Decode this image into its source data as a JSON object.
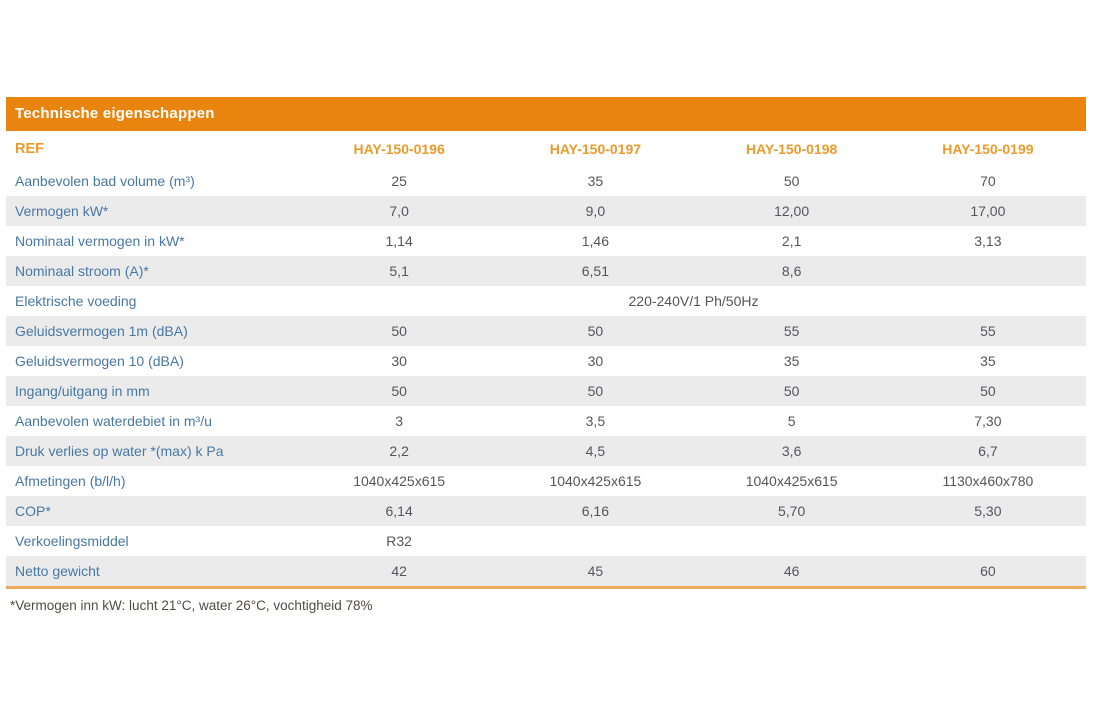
{
  "table": {
    "title": "Technische eigenschappen",
    "ref_label": "REF",
    "columns": [
      "HAY-150-0196",
      "HAY-150-0197",
      "HAY-150-0198",
      "HAY-150-0199"
    ],
    "rows": [
      {
        "label": "Aanbevolen bad volume (m³)",
        "values": [
          "25",
          "35",
          "50",
          "70"
        ]
      },
      {
        "label": "Vermogen kW*",
        "values": [
          "7,0",
          "9,0",
          "12,00",
          "17,00"
        ]
      },
      {
        "label": "Nominaal vermogen in kW*",
        "values": [
          "1,14",
          "1,46",
          "2,1",
          "3,13"
        ]
      },
      {
        "label": "Nominaal stroom (A)*",
        "values": [
          "5,1",
          "6,51",
          "8,6",
          ""
        ]
      },
      {
        "label": "Elektrische voeding",
        "span_value": "220-240V/1 Ph/50Hz"
      },
      {
        "label": "Geluidsvermogen 1m (dBA)",
        "values": [
          "50",
          "50",
          "55",
          "55"
        ]
      },
      {
        "label": "Geluidsvermogen 10 (dBA)",
        "values": [
          "30",
          "30",
          "35",
          "35"
        ]
      },
      {
        "label": "Ingang/uitgang in mm",
        "values": [
          "50",
          "50",
          "50",
          "50"
        ]
      },
      {
        "label": "Aanbevolen waterdebiet in m³/u",
        "values": [
          "3",
          "3,5",
          "5",
          "7,30"
        ]
      },
      {
        "label": "Druk verlies op water *(max) k Pa",
        "values": [
          "2,2",
          "4,5",
          "3,6",
          "6,7"
        ]
      },
      {
        "label": "Afmetingen (b/l/h)",
        "values": [
          "1040x425x615",
          "1040x425x615",
          "1040x425x615",
          "1130x460x780"
        ]
      },
      {
        "label": "COP*",
        "values": [
          "6,14",
          "6,16",
          "5,70",
          "5,30"
        ]
      },
      {
        "label": "Verkoelingsmiddel",
        "values": [
          "R32",
          "",
          "",
          ""
        ]
      },
      {
        "label": "Netto gewicht",
        "values": [
          "42",
          "45",
          "46",
          "60"
        ]
      }
    ],
    "footnote": "*Vermogen inn kW: lucht 21°C, water 26°C, vochtigheid 78%"
  },
  "colors": {
    "header_bg": "#E9850E",
    "header_text": "#FFFFFF",
    "col_header_text": "#EC9A2B",
    "label_text": "#4878A5",
    "value_text": "#55565B",
    "row_alt_bg": "#EBEBEB",
    "bottom_border": "#EFA95A",
    "footnote_text": "#524C44"
  }
}
